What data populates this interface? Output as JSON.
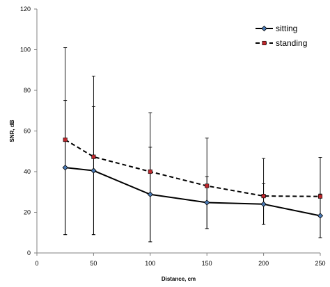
{
  "chart_data": {
    "type": "line",
    "xlabel": "Distance, cm",
    "ylabel": "SNR, dB",
    "xlim": [
      0,
      250
    ],
    "ylim": [
      0,
      120
    ],
    "x_ticks": [
      0,
      50,
      100,
      150,
      200,
      250
    ],
    "y_ticks": [
      0,
      20,
      40,
      60,
      80,
      100,
      120
    ],
    "x_tick_labels": [
      "0",
      "50",
      "100",
      "150",
      "200",
      "250"
    ],
    "y_tick_labels": [
      "0",
      "20",
      "40",
      "60",
      "80",
      "100",
      "120"
    ],
    "grid": false,
    "legend_position": "top-right",
    "x": [
      25,
      50,
      100,
      150,
      200,
      250
    ],
    "series": [
      {
        "name": "sitting",
        "style": "solid",
        "marker": "diamond",
        "color": "#000000",
        "marker_fill": "#4a7ab5",
        "values": [
          42,
          40.5,
          28.8,
          24.8,
          24,
          18.3
        ],
        "error_low": [
          9,
          9,
          5.5,
          12,
          14,
          7.5
        ],
        "error_high": [
          75,
          72,
          52,
          37.5,
          34,
          29
        ]
      },
      {
        "name": "standing",
        "style": "dashed",
        "marker": "square",
        "color": "#000000",
        "marker_fill": "#c0282d",
        "values": [
          55.7,
          47.3,
          40,
          33,
          28,
          27.8
        ],
        "error_low": [
          9,
          9,
          5.5,
          12,
          14,
          7.5
        ],
        "error_high": [
          101,
          87,
          69,
          56.5,
          46.5,
          47
        ]
      }
    ]
  }
}
